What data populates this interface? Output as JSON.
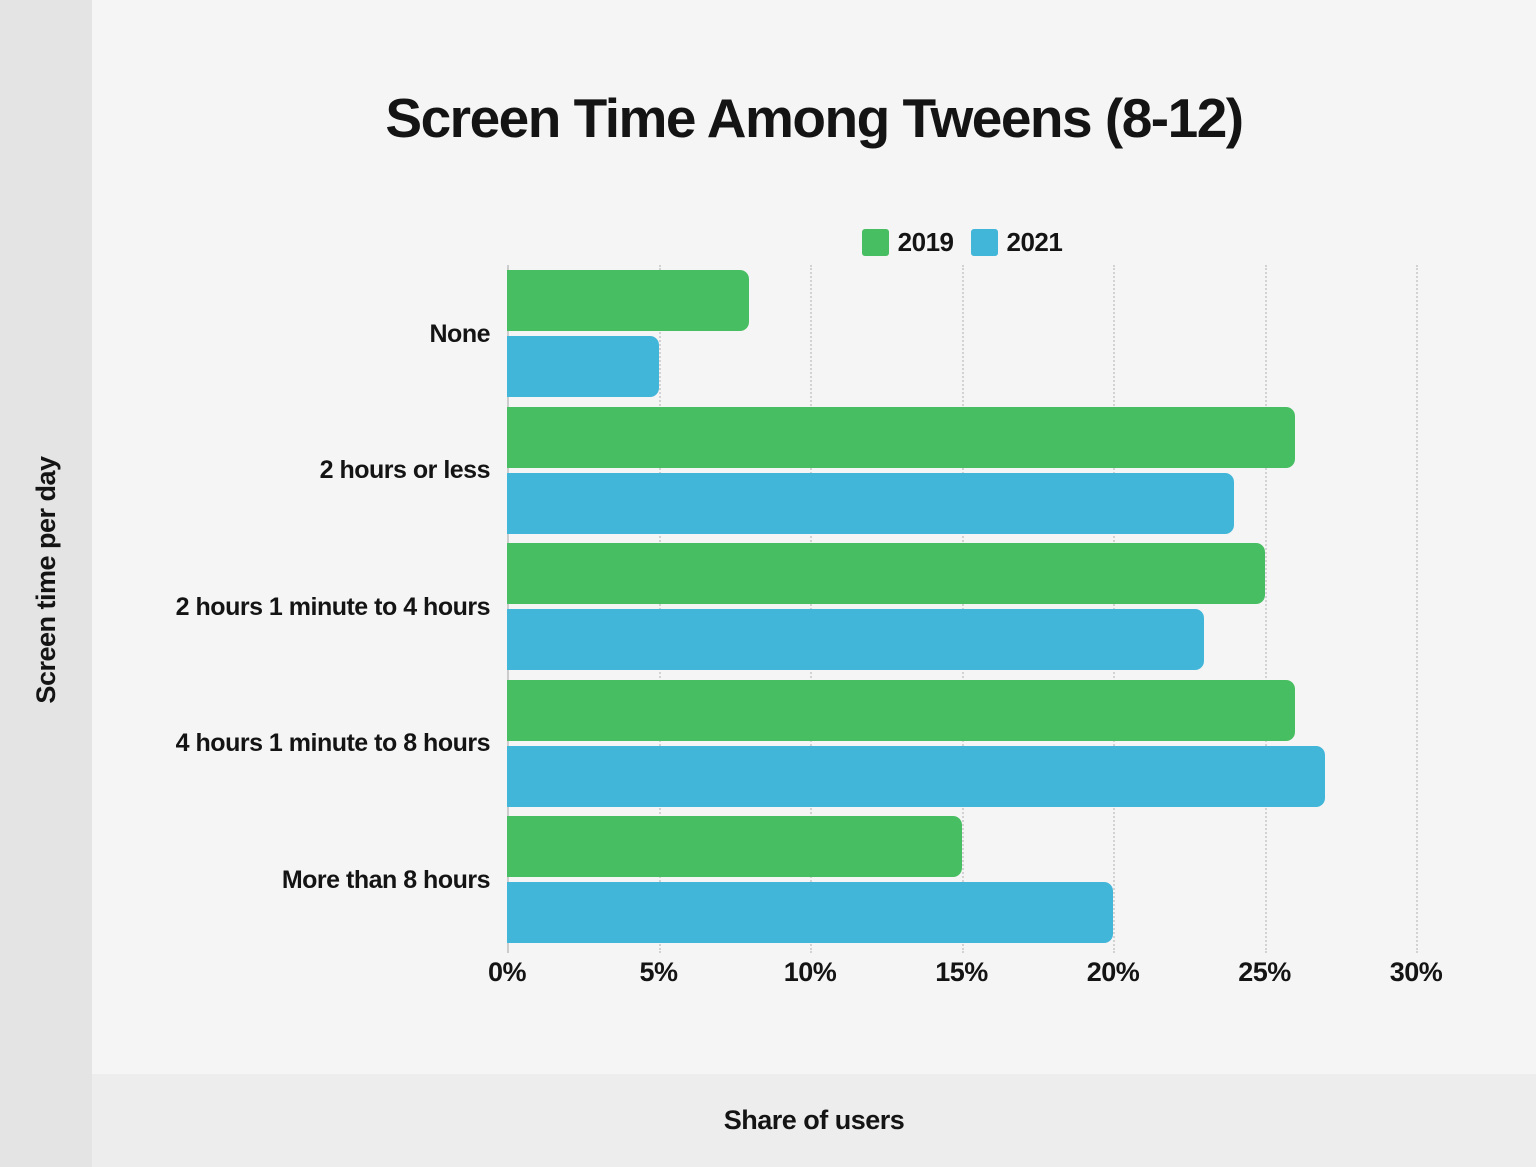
{
  "title": "Screen Time Among Tweens (8-12)",
  "y_axis_label": "Screen time per day",
  "x_axis_label": "Share of users",
  "legend": {
    "items": [
      {
        "label": "2019",
        "color": "#48be62"
      },
      {
        "label": "2021",
        "color": "#41b6d8"
      }
    ]
  },
  "chart_data": {
    "type": "bar",
    "orientation": "horizontal",
    "title": "Screen Time Among Tweens (8-12)",
    "xlabel": "Share of users",
    "ylabel": "Screen time per day",
    "categories": [
      "None",
      "2 hours or less",
      "2 hours 1 minute to 4 hours",
      "4 hours 1 minute to 8 hours",
      "More than 8 hours"
    ],
    "series": [
      {
        "name": "2019",
        "color": "#48be62",
        "values": [
          8,
          26,
          25,
          26,
          15
        ]
      },
      {
        "name": "2021",
        "color": "#41b6d8",
        "values": [
          5,
          24,
          23,
          27,
          20
        ]
      }
    ],
    "value_unit": "%",
    "x_ticks": [
      {
        "value": 0,
        "label": "0%"
      },
      {
        "value": 5,
        "label": "5%"
      },
      {
        "value": 10,
        "label": "10%"
      },
      {
        "value": 15,
        "label": "15%"
      },
      {
        "value": 20,
        "label": "20%"
      },
      {
        "value": 25,
        "label": "25%"
      },
      {
        "value": 30,
        "label": "30%"
      }
    ],
    "xlim": [
      0,
      33.3
    ],
    "grid": true,
    "legend_position": "top-center"
  },
  "colors": {
    "background": "#f5f5f5",
    "sidebar": "#e4e4e4",
    "bottom_strip": "#ededed",
    "gridline": "#d2d2d2",
    "axis_line": "#cccccc",
    "text": "#141414"
  }
}
